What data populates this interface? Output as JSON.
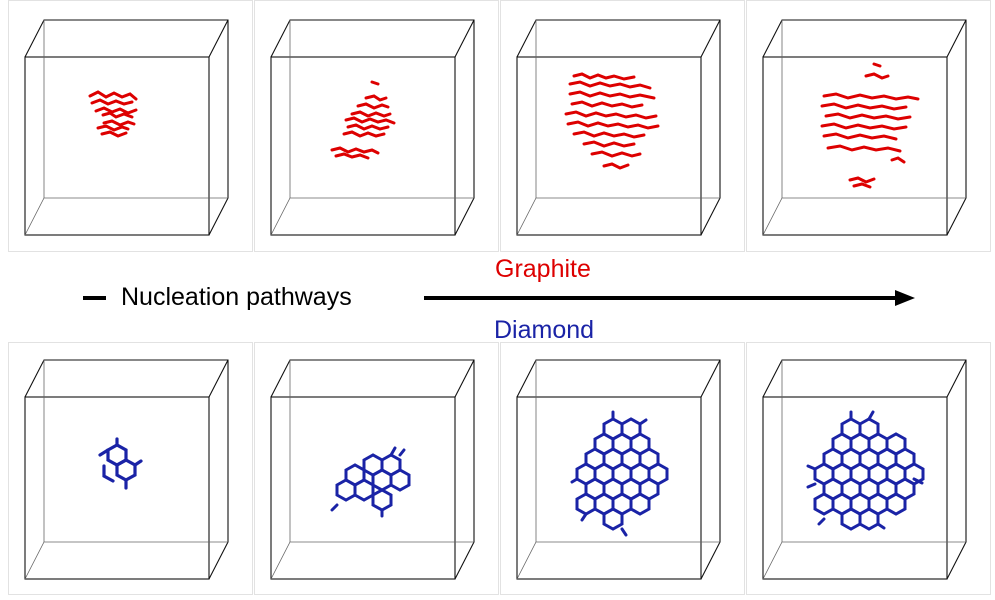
{
  "labels": {
    "graphite": "Graphite",
    "diamond": "Diamond",
    "pathway": "Nucleation pathways"
  },
  "colors": {
    "graphite": "#dd0000",
    "diamond": "#1a23a6",
    "box": "#111111",
    "text": "#000000"
  },
  "rows": [
    {
      "name": "graphite-row",
      "stages": 4
    },
    {
      "name": "diamond-row",
      "stages": 4
    }
  ]
}
